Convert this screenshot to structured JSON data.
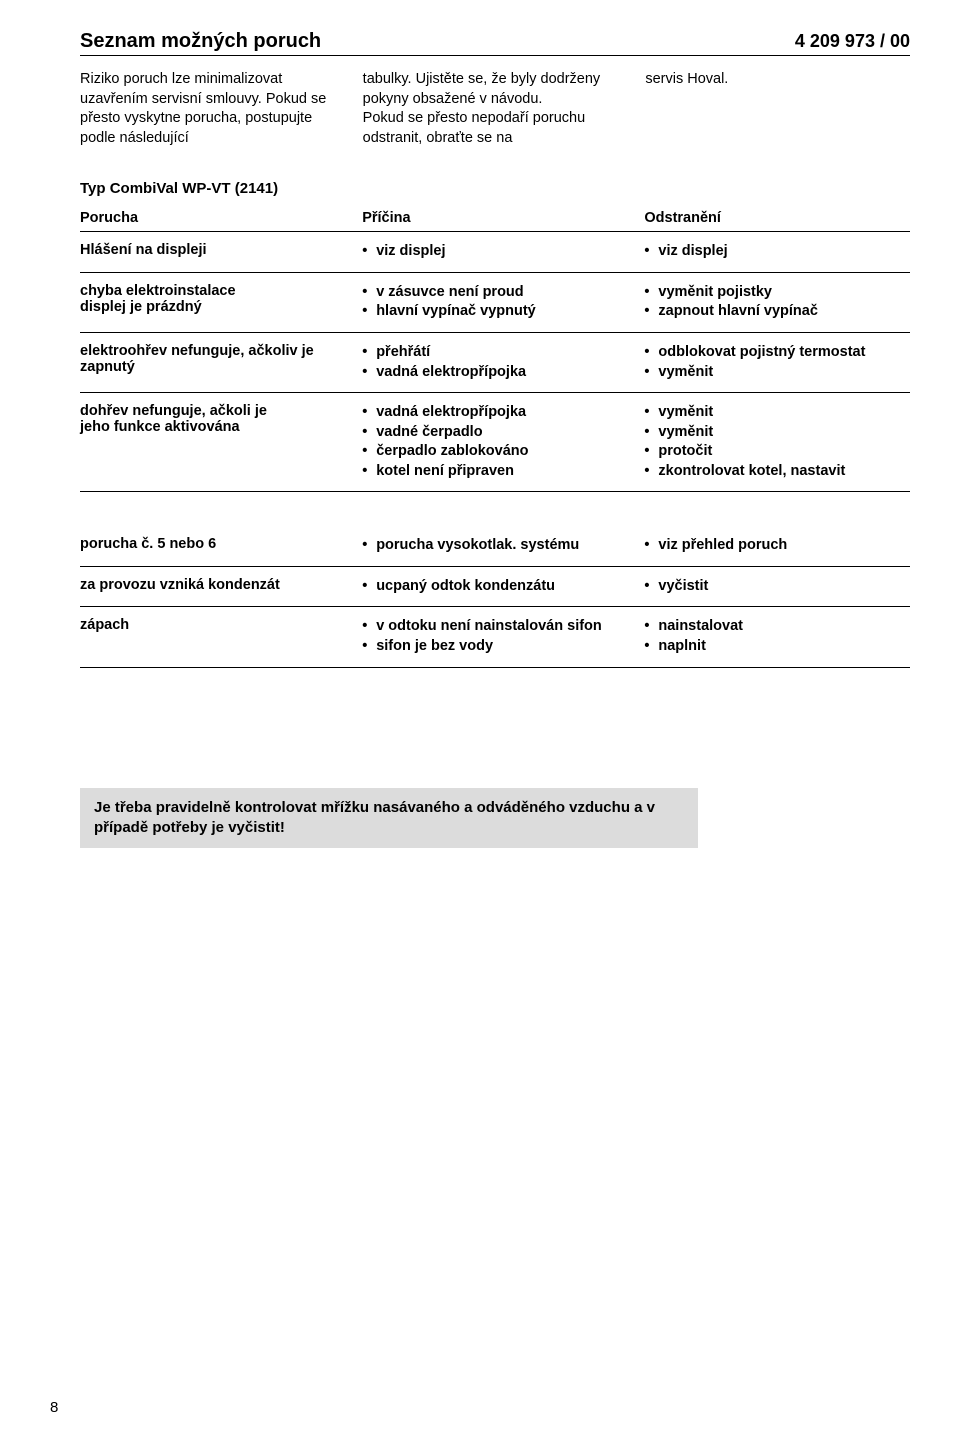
{
  "header": {
    "title": "Seznam možných poruch",
    "doc_id": "4 209 973 / 00"
  },
  "intro": {
    "col1": "Riziko poruch lze minimalizovat uzavřením servisní smlouvy. Pokud se přesto vyskytne porucha, postupujte podle následující",
    "col2": "tabulky. Ujistěte se, že byly dodrženy pokyny obsažené v návodu.\nPokud se přesto nepodaří poruchu odstranit, obraťte se na",
    "col3": "servis Hoval."
  },
  "type_line": "Typ CombiVal WP-VT (2141)",
  "table": {
    "columns": [
      "Porucha",
      "Příčina",
      "Odstranění"
    ],
    "groups": [
      {
        "rows": [
          {
            "c1": "Hlášení na displeji",
            "c2": [
              "viz displej"
            ],
            "c3": [
              "viz displej"
            ]
          },
          {
            "c1": "chyba elektroinstalace\ndisplej je prázdný",
            "c2": [
              "v zásuvce není proud",
              "hlavní vypínač vypnutý"
            ],
            "c3": [
              "vyměnit pojistky",
              "zapnout hlavní vypínač"
            ]
          },
          {
            "c1": "elektroohřev nefunguje, ačkoliv je zapnutý",
            "c2": [
              "přehřátí",
              "vadná elektropřípojka"
            ],
            "c3": [
              "odblokovat pojistný termostat",
              "vyměnit"
            ]
          },
          {
            "c1": "dohřev nefunguje, ačkoli je\njeho funkce aktivována",
            "c2": [
              "vadná elektropřípojka",
              "vadné čerpadlo",
              "čerpadlo zablokováno",
              "kotel není připraven"
            ],
            "c3": [
              "vyměnit",
              "vyměnit",
              "protočit",
              "zkontrolovat kotel, nastavit"
            ]
          }
        ]
      },
      {
        "rows": [
          {
            "c1": "porucha č. 5 nebo 6",
            "c2": [
              "porucha vysokotlak. systému"
            ],
            "c3": [
              "viz přehled poruch"
            ]
          },
          {
            "c1": "za provozu vzniká kondenzát",
            "c2": [
              "ucpaný odtok kondenzátu"
            ],
            "c3": [
              "vyčistit"
            ]
          },
          {
            "c1": "zápach",
            "c2": [
              "v odtoku není nainstalován sifon",
              "sifon je bez vody"
            ],
            "c3": [
              "nainstalovat",
              "naplnit"
            ]
          }
        ]
      }
    ]
  },
  "note": "Je třeba pravidelně kontrolovat mřížku nasávaného a odváděného vzduchu a v případě potřeby je vyčistit!",
  "page_number": "8"
}
